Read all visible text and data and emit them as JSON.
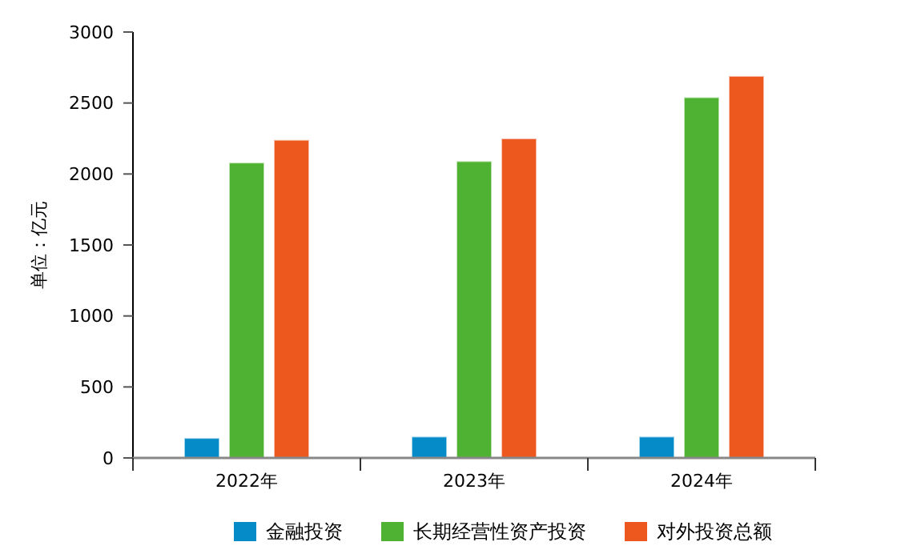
{
  "chart_data": {
    "type": "bar",
    "ylabel": "单位：亿元",
    "categories": [
      "2022年",
      "2023年",
      "2024年"
    ],
    "series": [
      {
        "name": "金融投资",
        "color": "#068bc9",
        "values": [
          140,
          150,
          150
        ]
      },
      {
        "name": "长期经营性资产投资",
        "color": "#50b232",
        "values": [
          2080,
          2090,
          2540
        ]
      },
      {
        "name": "对外投资总额",
        "color": "#ec581e",
        "values": [
          2240,
          2250,
          2690
        ]
      }
    ],
    "ylim": [
      0,
      3000
    ],
    "yticks": [
      0,
      500,
      1000,
      1500,
      2000,
      2500,
      3000
    ],
    "grid": false,
    "legend": "bottom"
  }
}
